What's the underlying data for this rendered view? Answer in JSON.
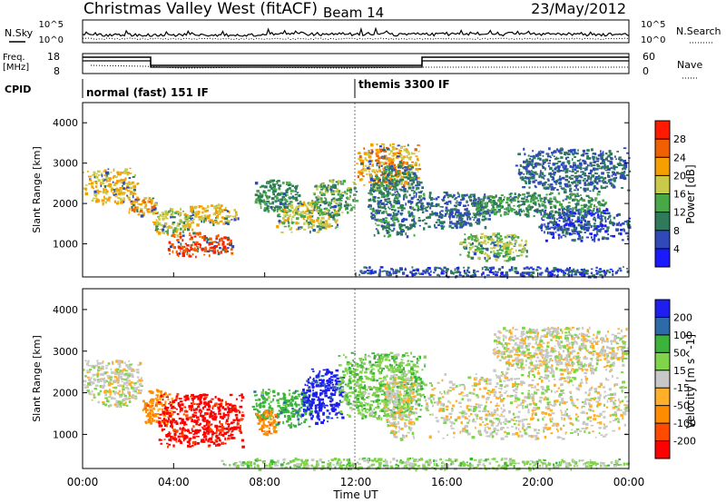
{
  "header": {
    "title": "Christmas Valley West (fitACF)",
    "beam": "Beam 14",
    "date": "23/May/2012"
  },
  "colors": {
    "power": [
      "#1a1aff",
      "#2f49b8",
      "#2f7a5a",
      "#48a848",
      "#c9c94a",
      "#f5a000",
      "#f06000",
      "#ff1a00"
    ],
    "velocity": [
      "#ff0000",
      "#ff4a00",
      "#ff8c00",
      "#ffaf2a",
      "#c8c8c8",
      "#80d44a",
      "#3cb43c",
      "#2c6aa8",
      "#1e1ef0"
    ]
  },
  "panels": {
    "nsky": {
      "label": "N.Sky",
      "ticks": [
        "10^5",
        "10^0"
      ],
      "right_label": "N.Search",
      "right_ticks": [
        "10^5",
        "10^0"
      ]
    },
    "freq": {
      "label_lines": [
        "Freq.",
        "[MHz]"
      ],
      "ticks": [
        "18",
        "8"
      ],
      "right_label": "Nave",
      "right_ticks": [
        "60",
        "0"
      ]
    },
    "cpid": {
      "label": "CPID",
      "segments": [
        {
          "label": "normal (fast) 151 IF",
          "start_hour": 0,
          "end_hour": 12
        },
        {
          "label": "themis 3300 IF",
          "start_hour": 12,
          "end_hour": 24
        }
      ]
    }
  },
  "axes": {
    "ylabel": "Slant Range [km]",
    "xlabel": "Time UT",
    "y_ticks": [
      "1000",
      "2000",
      "3000",
      "4000"
    ],
    "x_ticks": [
      "00:00",
      "04:00",
      "08:00",
      "12:00",
      "16:00",
      "20:00",
      "00:00"
    ]
  },
  "chart_data": [
    {
      "type": "heatmap",
      "title": "Power",
      "xlabel": "Time UT",
      "ylabel": "Slant Range [km]",
      "xlim": [
        0,
        24
      ],
      "ylim": [
        180,
        4500
      ],
      "colorbar": {
        "label": "Power [dB]",
        "ticks": [
          4,
          8,
          12,
          16,
          20,
          24,
          28
        ]
      },
      "regions": [
        {
          "t": [
            0.0,
            2.4
          ],
          "r": [
            2000,
            2900
          ],
          "v": 20
        },
        {
          "t": [
            2.0,
            3.2
          ],
          "r": [
            1700,
            2200
          ],
          "v": 22
        },
        {
          "t": [
            3.0,
            4.8
          ],
          "r": [
            1200,
            1900
          ],
          "v": 18
        },
        {
          "t": [
            3.6,
            6.6
          ],
          "r": [
            700,
            1300
          ],
          "v": 28
        },
        {
          "t": [
            4.5,
            6.8
          ],
          "r": [
            1500,
            2000
          ],
          "v": 20
        },
        {
          "t": [
            7.5,
            9.5
          ],
          "r": [
            1800,
            2600
          ],
          "v": 12
        },
        {
          "t": [
            8.5,
            11.2
          ],
          "r": [
            1300,
            2100
          ],
          "v": 18
        },
        {
          "t": [
            10.0,
            12.0
          ],
          "r": [
            1700,
            2600
          ],
          "v": 14
        },
        {
          "t": [
            12.0,
            14.8
          ],
          "r": [
            2400,
            3500
          ],
          "v": 22
        },
        {
          "t": [
            12.5,
            15.0
          ],
          "r": [
            1200,
            3000
          ],
          "v": 10
        },
        {
          "t": [
            15.0,
            17.8
          ],
          "r": [
            1400,
            2300
          ],
          "v": 8
        },
        {
          "t": [
            16.5,
            19.5
          ],
          "r": [
            600,
            1300
          ],
          "v": 16
        },
        {
          "t": [
            17.0,
            23.0
          ],
          "r": [
            1700,
            2300
          ],
          "v": 12
        },
        {
          "t": [
            20.0,
            24.0
          ],
          "r": [
            1100,
            1900
          ],
          "v": 6
        },
        {
          "t": [
            19.0,
            24.0
          ],
          "r": [
            2300,
            3400
          ],
          "v": 8
        },
        {
          "t": [
            12.0,
            24.0
          ],
          "r": [
            200,
            450
          ],
          "v": 6
        }
      ]
    },
    {
      "type": "heatmap",
      "title": "Velocity",
      "xlabel": "Time UT",
      "ylabel": "Slant Range [km]",
      "xlim": [
        0,
        24
      ],
      "ylim": [
        180,
        4500
      ],
      "colorbar": {
        "label": "Velocity [m s^-1]",
        "ticks": [
          "-200",
          "-100",
          "-50",
          "-15",
          "15",
          "50",
          "100",
          "200"
        ]
      },
      "regions": [
        {
          "t": [
            0.0,
            2.6
          ],
          "r": [
            1700,
            2800
          ],
          "v": 0
        },
        {
          "t": [
            2.6,
            4.0
          ],
          "r": [
            1300,
            2100
          ],
          "v": -75
        },
        {
          "t": [
            3.3,
            7.0
          ],
          "r": [
            700,
            2000
          ],
          "v": -220
        },
        {
          "t": [
            7.4,
            8.4
          ],
          "r": [
            1400,
            2100
          ],
          "v": 75
        },
        {
          "t": [
            7.6,
            8.6
          ],
          "r": [
            1000,
            1600
          ],
          "v": -75
        },
        {
          "t": [
            8.4,
            10.0
          ],
          "r": [
            1200,
            2100
          ],
          "v": 75
        },
        {
          "t": [
            9.6,
            11.4
          ],
          "r": [
            1300,
            2600
          ],
          "v": 220
        },
        {
          "t": [
            11.2,
            15.0
          ],
          "r": [
            1400,
            3000
          ],
          "v": 40
        },
        {
          "t": [
            13.2,
            14.6
          ],
          "r": [
            900,
            2500
          ],
          "v": 0
        },
        {
          "t": [
            15.0,
            24.0
          ],
          "r": [
            900,
            2500
          ],
          "v": 0
        },
        {
          "t": [
            6.0,
            24.0
          ],
          "r": [
            180,
            450
          ],
          "v": 30
        },
        {
          "t": [
            18.0,
            24.0
          ],
          "r": [
            2500,
            3600
          ],
          "v": 0
        }
      ]
    }
  ]
}
